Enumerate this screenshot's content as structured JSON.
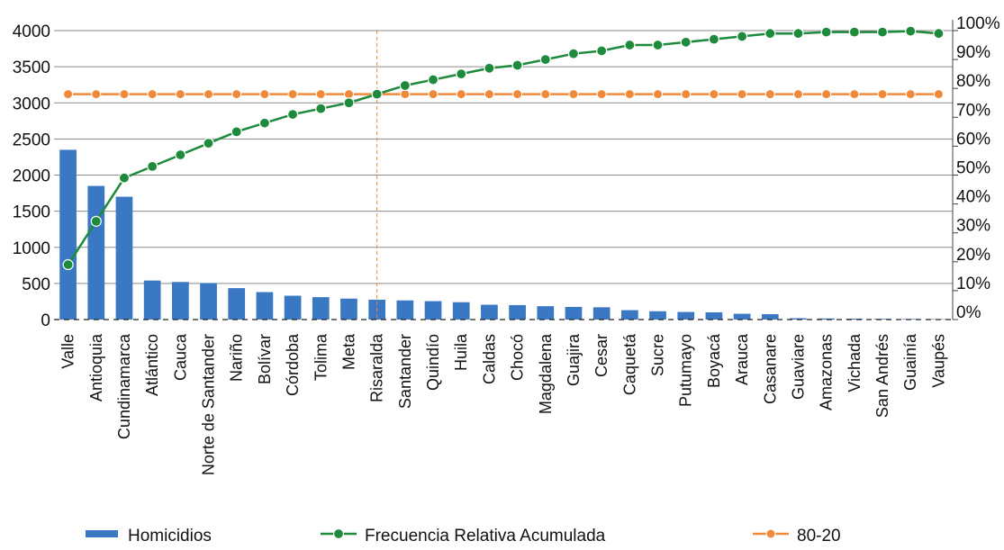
{
  "chart_data": {
    "type": "bar",
    "categories": [
      "Valle",
      "Antioquia",
      "Cundinamarca",
      "Atlántico",
      "Cauca",
      "Norte de Santander",
      "Nariño",
      "Bolívar",
      "Córdoba",
      "Tolima",
      "Meta",
      "Risaralda",
      "Santander",
      "Quindío",
      "Huila",
      "Caldas",
      "Chocó",
      "Magdalena",
      "Guajira",
      "Cesar",
      "Caquetá",
      "Sucre",
      "Putumayo",
      "Boyacá",
      "Arauca",
      "Casanare",
      "Guaviare",
      "Amazonas",
      "Vichada",
      "San Andrés",
      "Guainía",
      "Vaupés"
    ],
    "series": [
      {
        "name": "Homicidios",
        "type": "bar",
        "axis": "left",
        "color": "#3a78c3",
        "values": [
          2350,
          1850,
          1700,
          540,
          520,
          505,
          435,
          380,
          330,
          310,
          290,
          275,
          265,
          255,
          240,
          205,
          200,
          185,
          175,
          170,
          130,
          115,
          105,
          100,
          80,
          75,
          18,
          15,
          12,
          10,
          8,
          6
        ]
      },
      {
        "name": "Frecuencia Relativa Acumulada",
        "type": "line",
        "axis": "right",
        "color": "#1e8a3c",
        "values": [
          0.19,
          0.34,
          0.49,
          0.53,
          0.57,
          0.61,
          0.65,
          0.68,
          0.71,
          0.73,
          0.75,
          0.78,
          0.81,
          0.83,
          0.85,
          0.87,
          0.88,
          0.9,
          0.92,
          0.93,
          0.95,
          0.95,
          0.96,
          0.97,
          0.98,
          0.99,
          0.99,
          0.995,
          0.995,
          0.995,
          0.998,
          0.99
        ]
      },
      {
        "name": "80-20",
        "type": "line",
        "axis": "right",
        "color": "#f0893a",
        "values": [
          0.78,
          0.78,
          0.78,
          0.78,
          0.78,
          0.78,
          0.78,
          0.78,
          0.78,
          0.78,
          0.78,
          0.78,
          0.78,
          0.78,
          0.78,
          0.78,
          0.78,
          0.78,
          0.78,
          0.78,
          0.78,
          0.78,
          0.78,
          0.78,
          0.78,
          0.78,
          0.78,
          0.78,
          0.78,
          0.78,
          0.78,
          0.78
        ]
      }
    ],
    "y_left": {
      "ylim": [
        0,
        4000
      ],
      "ticks": [
        "0",
        "500",
        "1000",
        "1500",
        "2000",
        "2500",
        "3000",
        "3500",
        "4000"
      ]
    },
    "y_right": {
      "ylim": [
        0,
        1
      ],
      "ticks": [
        "0%",
        "10%",
        "20%",
        "30%",
        "40%",
        "50%",
        "60%",
        "70%",
        "80%",
        "90%",
        "100%"
      ]
    },
    "divider_after_category": "Risaralda",
    "divider_color": "#f0893a",
    "grid": true,
    "legend_position": "bottom"
  }
}
